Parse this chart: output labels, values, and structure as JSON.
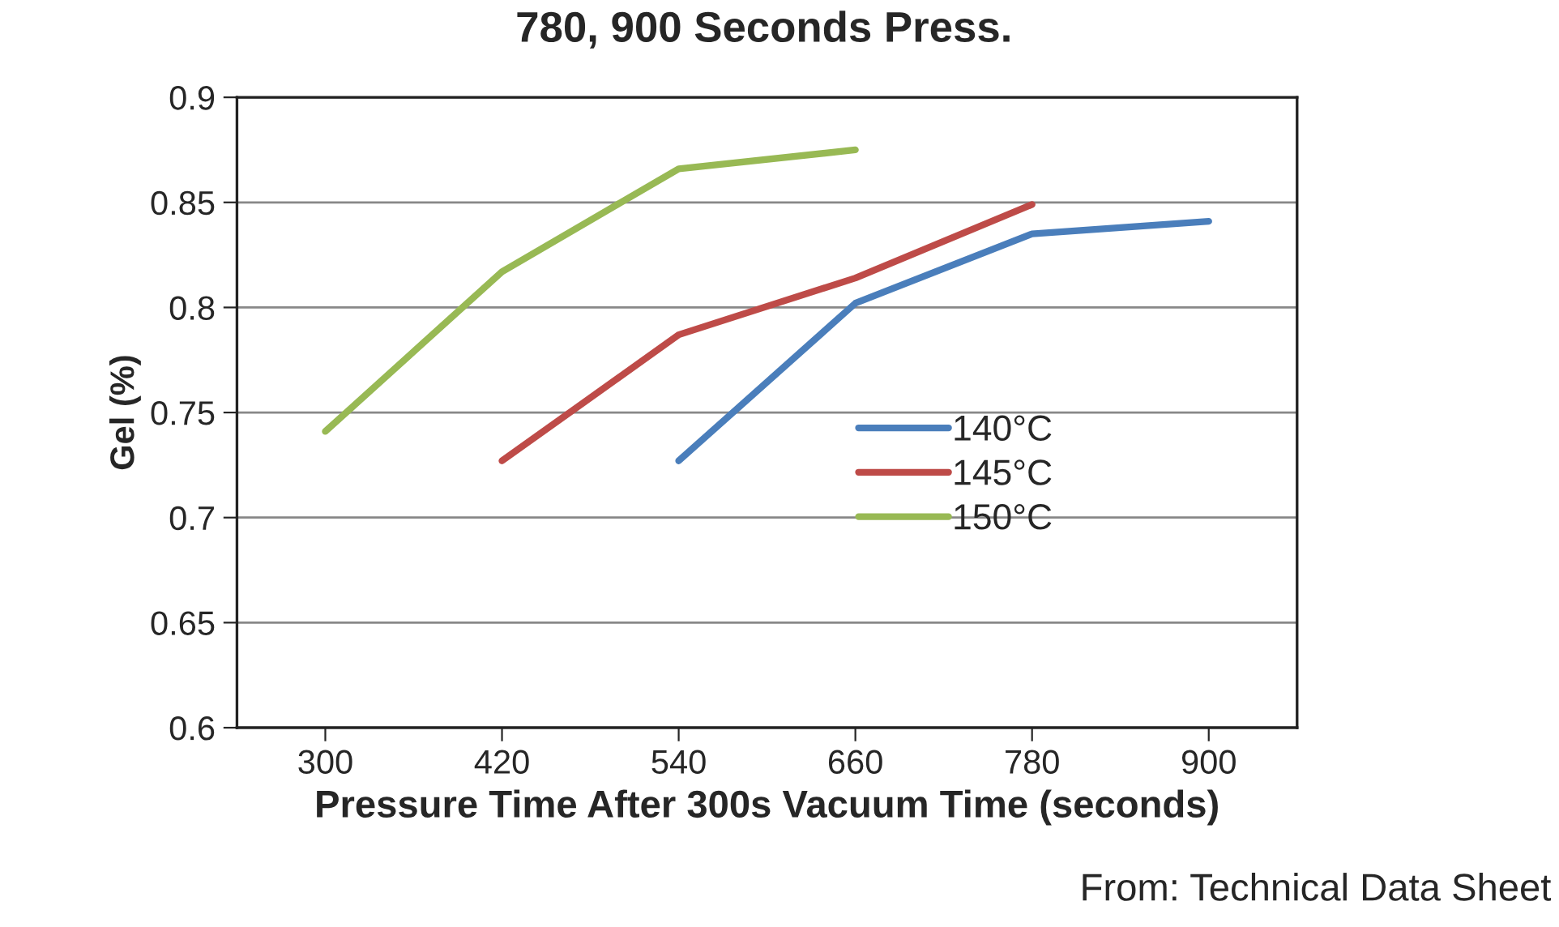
{
  "chart_data": {
    "type": "line",
    "title": "780, 900 Seconds Press.",
    "xlabel": "Pressure Time After 300s Vacuum Time (seconds)",
    "ylabel": "Gel (%)",
    "categories": [
      "300",
      "420",
      "540",
      "660",
      "780",
      "900"
    ],
    "series": [
      {
        "name": "140°C",
        "color": "#4a7ebb",
        "values": [
          null,
          null,
          0.727,
          0.802,
          0.835,
          0.841
        ]
      },
      {
        "name": "145°C",
        "color": "#be4b48",
        "values": [
          null,
          0.727,
          0.787,
          0.814,
          0.849,
          null
        ]
      },
      {
        "name": "150°C",
        "color": "#98b954",
        "values": [
          0.741,
          0.817,
          0.866,
          0.875,
          null,
          null
        ]
      }
    ],
    "ylim": [
      0.6,
      0.9
    ],
    "yticks": [
      {
        "value": 0.6,
        "label": "0.6"
      },
      0.65,
      {
        "value": 0.7,
        "label": "0.7"
      },
      0.75,
      {
        "value": 0.8,
        "label": "0.8"
      },
      0.85,
      {
        "value": 0.9,
        "label": "0.9"
      }
    ],
    "grid": "y",
    "legend": "right",
    "marker": "none",
    "line_style": "solid",
    "annotations": [
      "From: Technical Data Sheet"
    ]
  }
}
